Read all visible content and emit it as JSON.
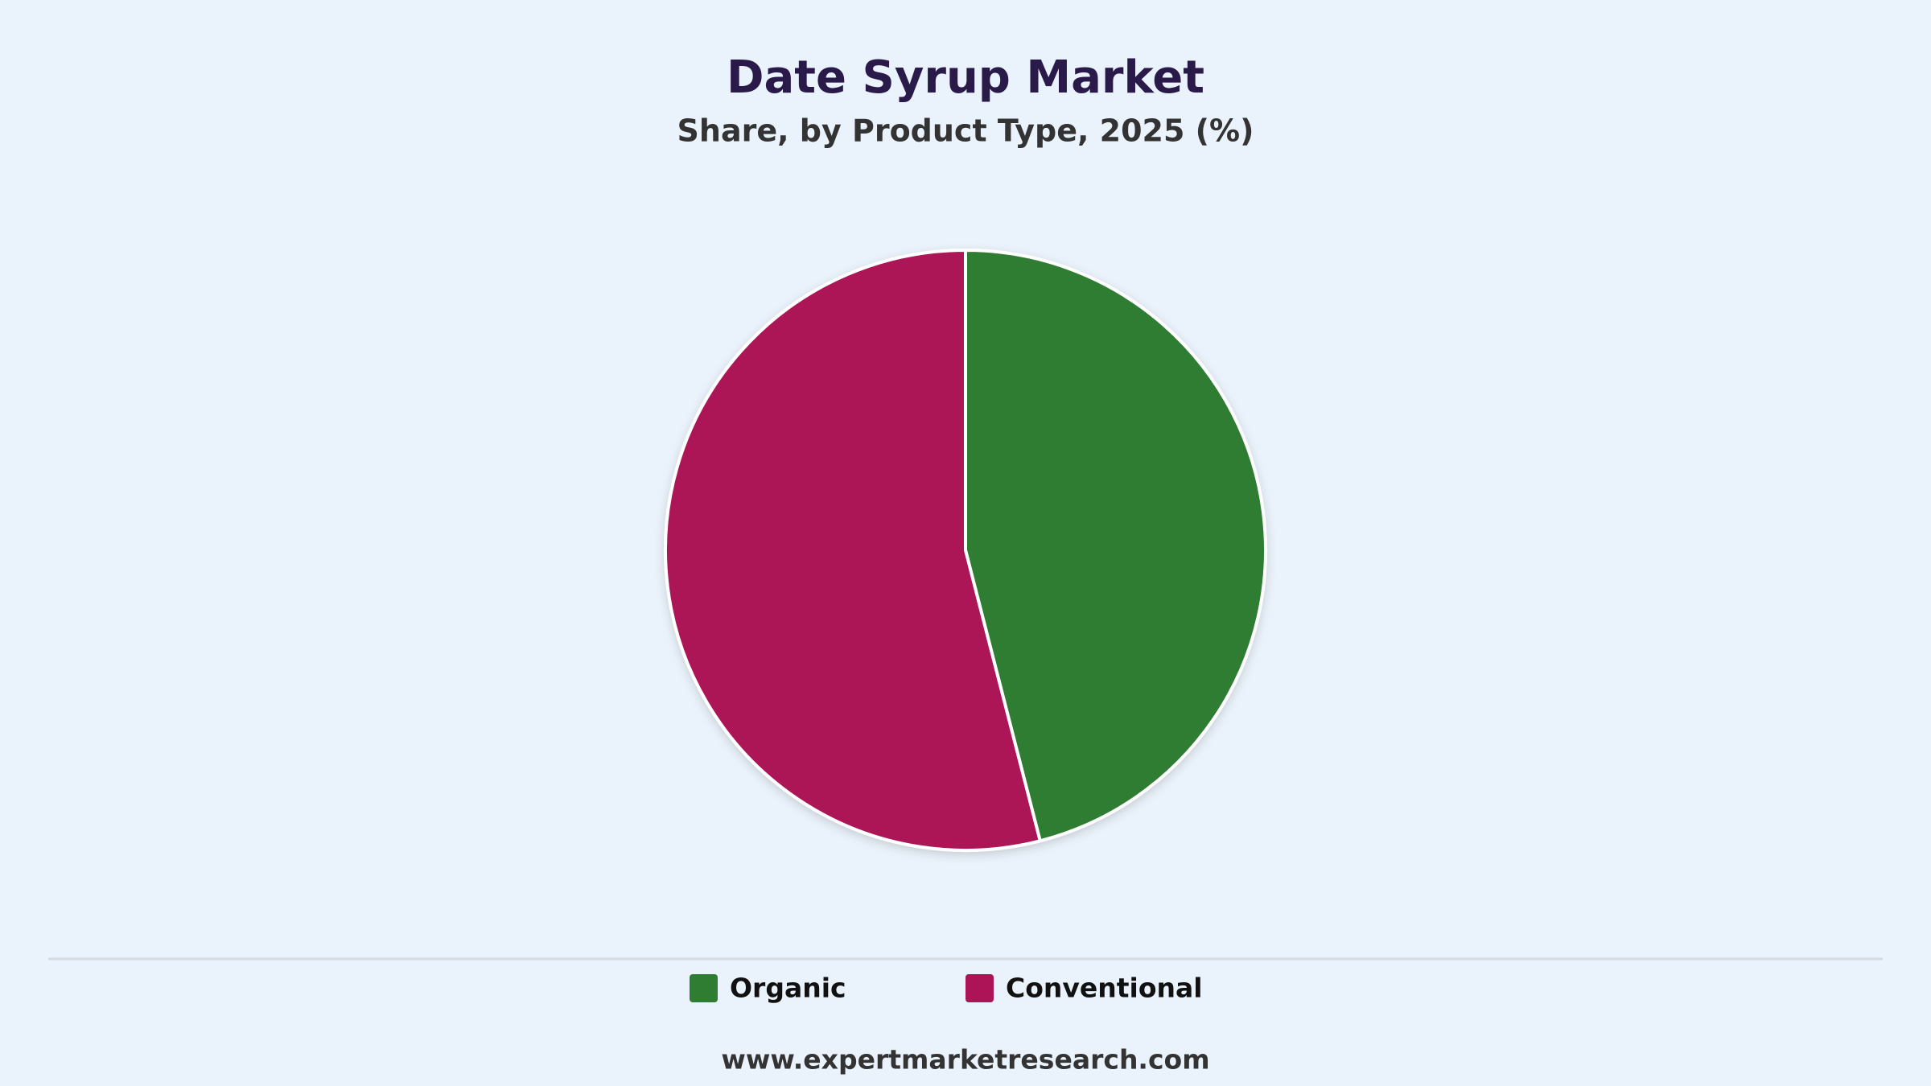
{
  "chart_data": {
    "type": "pie",
    "title": "Date Syrup Market",
    "subtitle": "Share, by Product Type, 2025 (%)",
    "categories": [
      "Organic",
      "Conventional"
    ],
    "values": [
      46,
      54
    ],
    "colors": [
      "#2e7d32",
      "#ad1457"
    ],
    "source": "www.expertmarketresearch.com"
  }
}
